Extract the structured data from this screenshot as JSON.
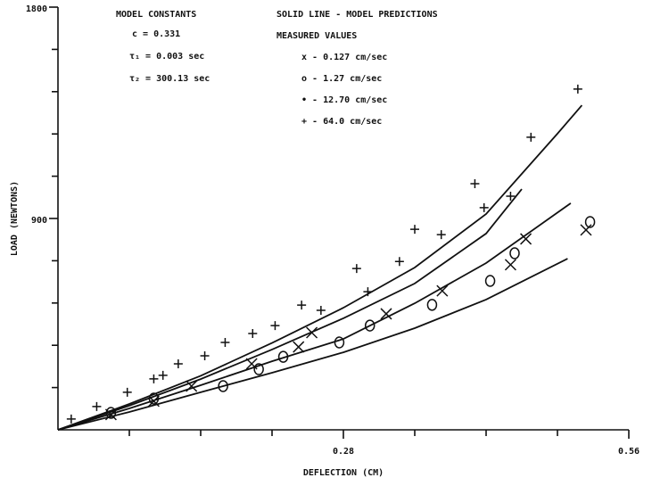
{
  "chart_data": {
    "type": "scatter",
    "xlabel": "DEFLECTION (CM)",
    "ylabel": "LOAD (NEWTONS)",
    "xlim": [
      0,
      0.56
    ],
    "ylim": [
      0,
      1800
    ],
    "xticks": [
      0.28,
      0.56
    ],
    "yticks": [
      900,
      1800
    ],
    "xminor_ticks": [
      0.07,
      0.14,
      0.21,
      0.35,
      0.42,
      0.49
    ],
    "yminor_ticks": [
      180,
      360,
      540,
      720,
      1080,
      1260,
      1440,
      1620
    ],
    "color": "#111111",
    "annotations": [
      "MODEL CONSTANTS",
      "c = 0.331",
      "τ₁ = 0.003 sec",
      "τ₂ = 300.13 sec",
      "SOLID LINE - MODEL PREDICTIONS",
      "MEASURED VALUES"
    ],
    "curves": [
      {
        "x": [
          0,
          0.07,
          0.14,
          0.21,
          0.28,
          0.35,
          0.42,
          0.5
        ],
        "values": [
          0,
          76,
          160,
          243,
          330,
          433,
          555,
          729
        ]
      },
      {
        "x": [
          0,
          0.07,
          0.14,
          0.21,
          0.28,
          0.35,
          0.42,
          0.503
        ],
        "values": [
          0,
          91,
          190,
          292,
          387,
          539,
          710,
          965
        ]
      },
      {
        "x": [
          0,
          0.07,
          0.14,
          0.21,
          0.28,
          0.35,
          0.42,
          0.455
        ],
        "values": [
          0,
          103,
          216,
          342,
          475,
          623,
          836,
          1025
        ]
      },
      {
        "x": [
          0,
          0.07,
          0.14,
          0.21,
          0.28,
          0.35,
          0.42,
          0.49,
          0.514
        ],
        "values": [
          0,
          110,
          230,
          370,
          520,
          691,
          919,
          1261,
          1382
        ]
      }
    ],
    "series": [
      {
        "name": "x - 0.127 cm/sec",
        "marker": "x",
        "x": [
          0.052,
          0.094,
          0.131,
          0.19,
          0.236,
          0.249,
          0.322,
          0.377,
          0.444,
          0.459,
          0.518
        ],
        "values": [
          65,
          122,
          186,
          281,
          353,
          414,
          494,
          592,
          703,
          813,
          851
        ]
      },
      {
        "name": "o - 1.27 cm/sec",
        "marker": "o",
        "x": [
          0.052,
          0.094,
          0.162,
          0.197,
          0.221,
          0.276,
          0.306,
          0.367,
          0.424,
          0.448,
          0.522
        ],
        "values": [
          72,
          133,
          186,
          258,
          311,
          372,
          444,
          532,
          634,
          752,
          885
        ]
      },
      {
        "name": "• - 12.70 cm/sec",
        "marker": "dot",
        "x": [],
        "values": []
      },
      {
        "name": "+ - 64.0 cm/sec",
        "marker": "+",
        "x": [
          0.013,
          0.038,
          0.068,
          0.094,
          0.103,
          0.118,
          0.144,
          0.164,
          0.191,
          0.213,
          0.239,
          0.258,
          0.293,
          0.304,
          0.335,
          0.35,
          0.376,
          0.409,
          0.418,
          0.444,
          0.464,
          0.51
        ],
        "values": [
          46,
          99,
          160,
          217,
          232,
          281,
          315,
          372,
          410,
          444,
          531,
          509,
          687,
          588,
          717,
          854,
          831,
          1048,
          946,
          995,
          1246,
          1451
        ]
      }
    ]
  }
}
